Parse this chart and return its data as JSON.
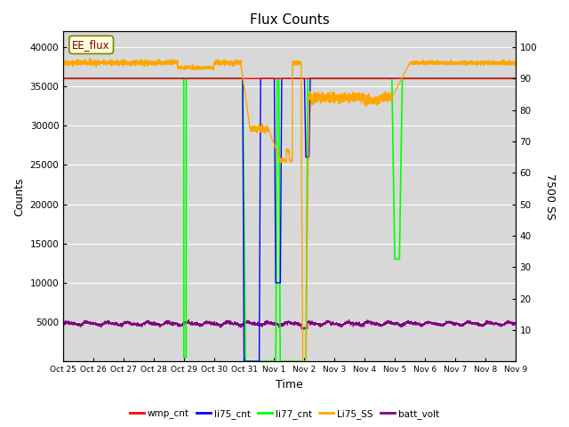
{
  "title": "Flux Counts",
  "xlabel": "Time",
  "ylabel_left": "Counts",
  "ylabel_right": "7500 SS",
  "annotation": "EE_flux",
  "x_tick_labels": [
    "Oct 25",
    "Oct 26",
    "Oct 27",
    "Oct 28",
    "Oct 29",
    "Oct 30",
    "Oct 31",
    "Nov 1",
    "Nov 2",
    "Nov 3",
    "Nov 4",
    "Nov 5",
    "Nov 6",
    "Nov 7",
    "Nov 8",
    "Nov 9"
  ],
  "ylim_left": [
    0,
    42000
  ],
  "ylim_right": [
    0,
    105
  ],
  "plot_bg_color": "#d8d8d8",
  "legend_entries": [
    "wmp_cnt",
    "li75_cnt",
    "li77_cnt",
    "Li75_SS",
    "batt_volt"
  ],
  "legend_colors": [
    "red",
    "blue",
    "lime",
    "orange",
    "purple"
  ],
  "n_days": 15
}
